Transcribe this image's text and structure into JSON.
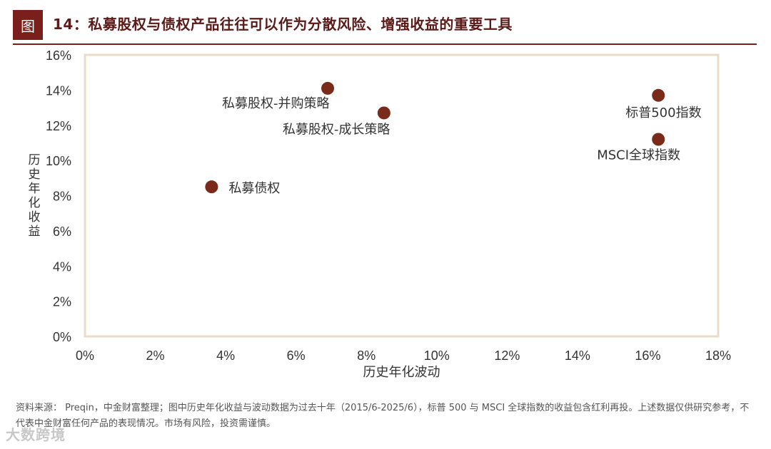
{
  "header": {
    "tag": "图",
    "title": "14：私募股权与债权产品往往可以作为分散风险、增强收益的重要工具"
  },
  "colors": {
    "accent": "#7a1f1c",
    "marker": "#7a2a18",
    "frame": "#e9dcc8"
  },
  "chart_data": {
    "type": "scatter",
    "title": "",
    "xlabel": "历史年化波动",
    "ylabel": "历史年化收益",
    "xlim": [
      0,
      18
    ],
    "ylim": [
      0,
      16
    ],
    "x_ticks": [
      "0%",
      "2%",
      "4%",
      "6%",
      "8%",
      "10%",
      "12%",
      "14%",
      "16%",
      "18%"
    ],
    "y_ticks": [
      "0%",
      "2%",
      "4%",
      "6%",
      "8%",
      "10%",
      "12%",
      "14%",
      "16%"
    ],
    "grid": false,
    "points": [
      {
        "label": "私募股权-并购策略",
        "x": 6.9,
        "y": 14.1
      },
      {
        "label": "私募股权-成长策略",
        "x": 8.5,
        "y": 12.7
      },
      {
        "label": "私募债权",
        "x": 3.6,
        "y": 8.5
      },
      {
        "label": "标普500指数",
        "x": 16.3,
        "y": 13.7
      },
      {
        "label": "MSCI全球指数",
        "x": 16.3,
        "y": 11.2
      }
    ]
  },
  "source_note": "资料来源： Preqin，中金财富整理；图中历史年化收益与波动数据为过去十年（2015/6-2025/6），标普 500 与 MSCI 全球指数的收益包含红利再投。上述数据仅供研究参考，不代表中金财富任何产品的表现情况。市场有风险，投资需谨慎。",
  "watermark": "大数跨境"
}
